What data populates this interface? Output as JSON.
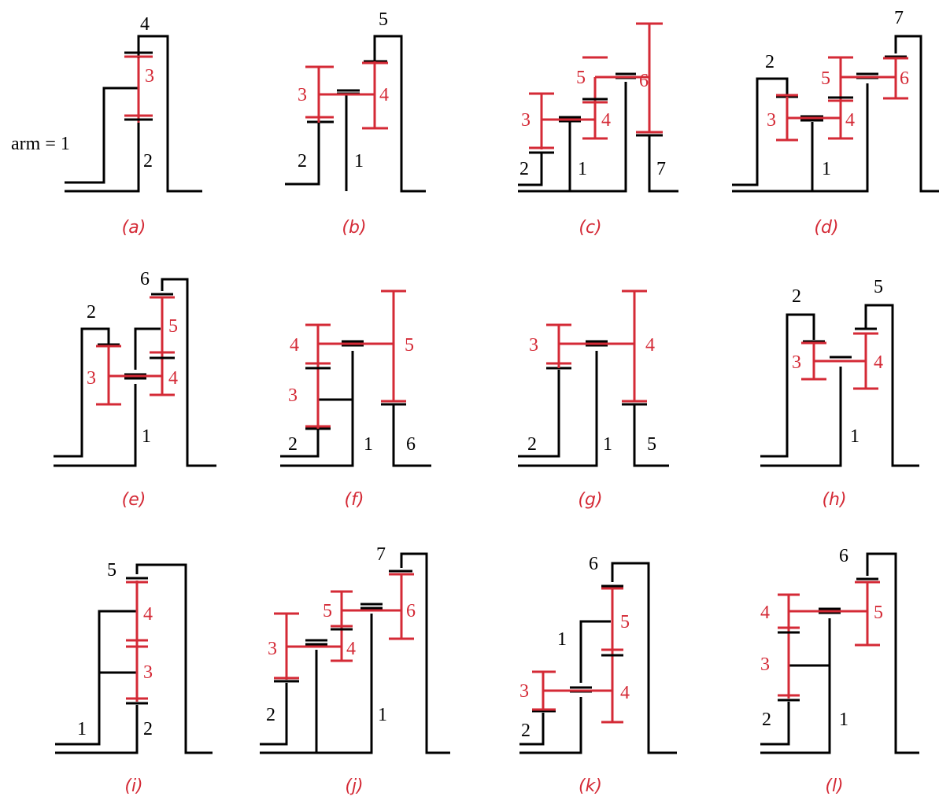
{
  "figure_label_a": "arm = 1",
  "panels": [
    {
      "caption": "(a)",
      "labels": [
        "4",
        "3",
        "2"
      ]
    },
    {
      "caption": "(b)",
      "labels": [
        "5",
        "3",
        "4",
        "2",
        "1"
      ]
    },
    {
      "caption": "(c)",
      "labels": [
        "6",
        "5",
        "4",
        "3",
        "2",
        "1",
        "7"
      ]
    },
    {
      "caption": "(d)",
      "labels": [
        "7",
        "2",
        "5",
        "6",
        "3",
        "4",
        "1"
      ]
    },
    {
      "caption": "(e)",
      "labels": [
        "6",
        "2",
        "5",
        "3",
        "4",
        "1"
      ]
    },
    {
      "caption": "(f)",
      "labels": [
        "4",
        "5",
        "3",
        "2",
        "1",
        "6"
      ]
    },
    {
      "caption": "(g)",
      "labels": [
        "3",
        "4",
        "2",
        "1",
        "5"
      ]
    },
    {
      "caption": "(h)",
      "labels": [
        "2",
        "5",
        "3",
        "4",
        "1"
      ]
    },
    {
      "caption": "(i)",
      "labels": [
        "5",
        "4",
        "3",
        "1",
        "2"
      ]
    },
    {
      "caption": "(j)",
      "labels": [
        "7",
        "5",
        "6",
        "3",
        "4",
        "2",
        "1"
      ]
    },
    {
      "caption": "(k)",
      "labels": [
        "6",
        "5",
        "1",
        "4",
        "3",
        "2"
      ]
    },
    {
      "caption": "(l)",
      "labels": [
        "6",
        "4",
        "5",
        "3",
        "2",
        "1"
      ]
    }
  ],
  "colors": {
    "links": "#000000",
    "gears": "#d42a36"
  }
}
